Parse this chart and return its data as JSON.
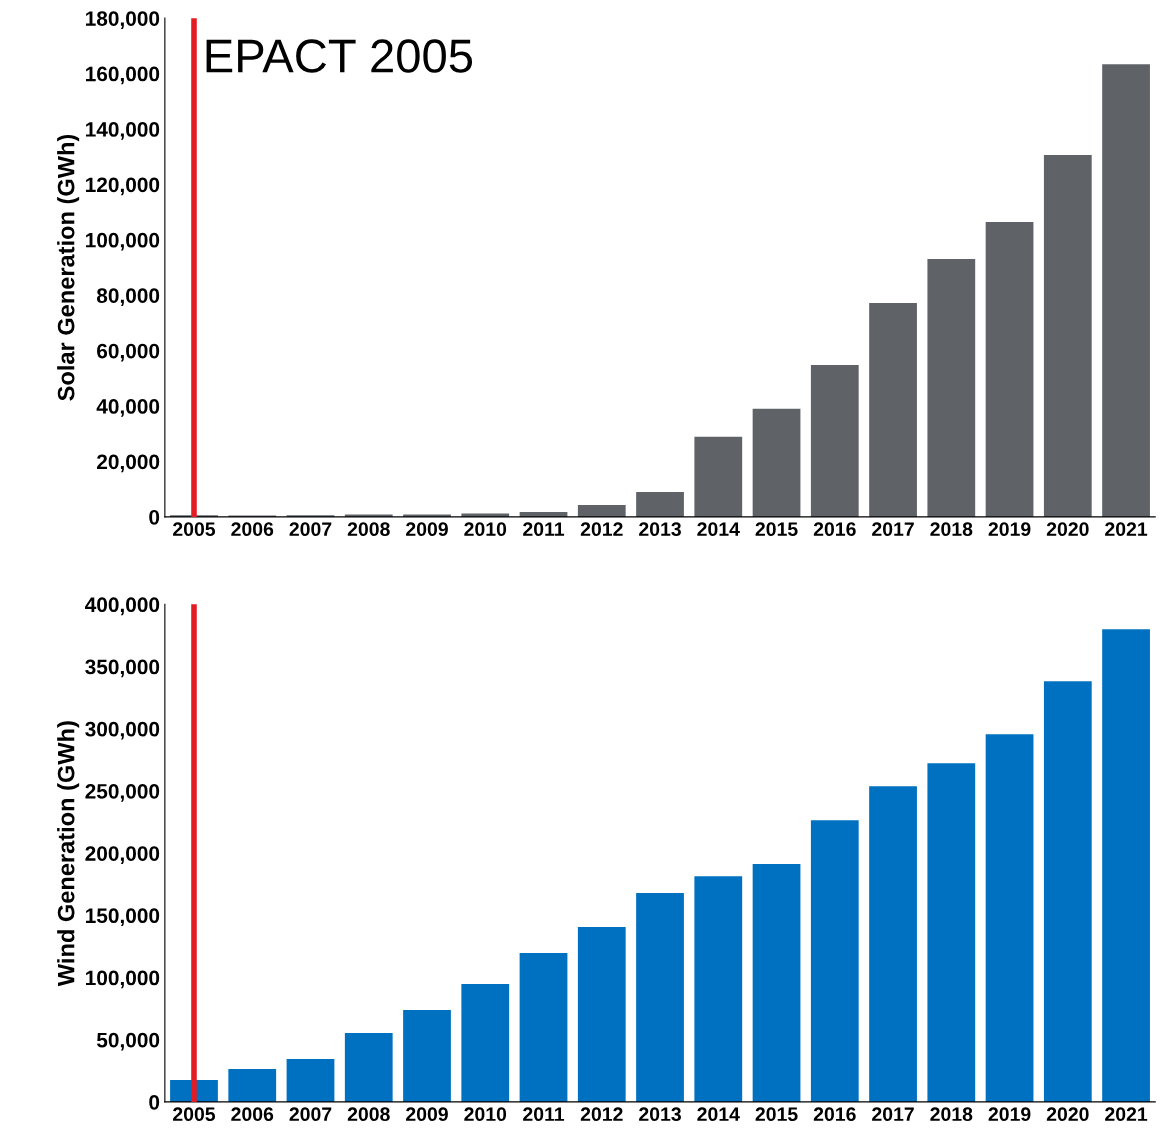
{
  "chart_data": [
    {
      "type": "bar",
      "ylabel": "Solar Generation (GWh)",
      "categories": [
        "2005",
        "2006",
        "2007",
        "2008",
        "2009",
        "2010",
        "2011",
        "2012",
        "2013",
        "2014",
        "2015",
        "2016",
        "2017",
        "2018",
        "2019",
        "2020",
        "2021"
      ],
      "series": [
        {
          "color": "#5f6368",
          "values": [
            550,
            500,
            600,
            860,
            890,
            1200,
            1800,
            4300,
            9000,
            28900,
            39000,
            54800,
            77200,
            93100,
            106400,
            130600,
            163400
          ]
        }
      ],
      "ylim": [
        0,
        180000
      ],
      "yticks": [
        0,
        {
          "value": 20000,
          "label": "20,000"
        },
        {
          "value": 40000,
          "label": "40,000"
        },
        {
          "value": 60000,
          "label": "60,000"
        },
        {
          "value": 80000,
          "label": "80,000"
        },
        {
          "value": 100000,
          "label": "100,000"
        },
        {
          "value": 120000,
          "label": "120,000"
        },
        {
          "value": 140000,
          "label": "140,000"
        },
        {
          "value": 160000,
          "label": "160,000"
        },
        {
          "value": 180000,
          "label": "180,000"
        }
      ],
      "ref_lines": [
        {
          "axis": "x",
          "value": "2005",
          "label": "EPACT 2005",
          "color": "#e31b23"
        }
      ],
      "grid": false,
      "legend": false
    },
    {
      "type": "bar",
      "ylabel": "Wind Generation (GWh)",
      "categories": [
        "2005",
        "2006",
        "2007",
        "2008",
        "2009",
        "2010",
        "2011",
        "2012",
        "2013",
        "2014",
        "2015",
        "2016",
        "2017",
        "2018",
        "2019",
        "2020",
        "2021"
      ],
      "series": [
        {
          "color": "#0070c0",
          "values": [
            17700,
            26500,
            34500,
            55400,
            73900,
            94800,
            119700,
            140600,
            167900,
            181500,
            191200,
            226500,
            253800,
            272300,
            295600,
            338200,
            379900
          ]
        }
      ],
      "ylim": [
        0,
        400000
      ],
      "yticks": [
        0,
        {
          "value": 50000,
          "label": "50,000"
        },
        {
          "value": 100000,
          "label": "100,000"
        },
        {
          "value": 150000,
          "label": "150,000"
        },
        {
          "value": 200000,
          "label": "200,000"
        },
        {
          "value": 250000,
          "label": "250,000"
        },
        {
          "value": 300000,
          "label": "300,000"
        },
        {
          "value": 350000,
          "label": "350,000"
        },
        {
          "value": 400000,
          "label": "400,000"
        }
      ],
      "ref_lines": [
        {
          "axis": "x",
          "value": "2005",
          "color": "#e31b23"
        }
      ],
      "grid": false,
      "legend": false
    }
  ]
}
